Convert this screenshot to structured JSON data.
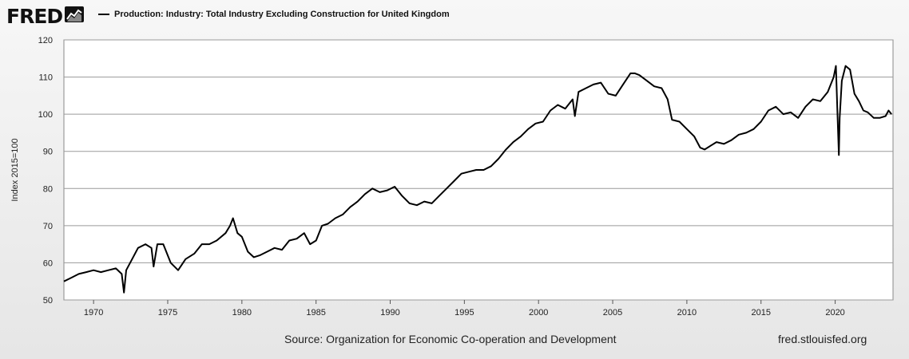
{
  "brand": {
    "name": "FRED",
    "logo_icon": "fred-chart-logo-icon"
  },
  "footer": {
    "source": "Source: Organization for Economic Co-operation and Development",
    "url": "fred.stlouisfed.org"
  },
  "chart_data": {
    "type": "line",
    "title": "",
    "xlabel": "",
    "ylabel": "Index 2015=100",
    "xlim": [
      1968,
      2023.9
    ],
    "ylim": [
      50,
      120
    ],
    "grid": true,
    "legend_position": "top-left",
    "x_ticks": [
      "1970",
      "1975",
      "1980",
      "1985",
      "1990",
      "1995",
      "2000",
      "2005",
      "2010",
      "2015",
      "2020"
    ],
    "y_ticks": [
      "50",
      "60",
      "70",
      "80",
      "90",
      "100",
      "110",
      "120"
    ],
    "series": [
      {
        "name": "Production: Industry: Total Industry Excluding Construction for United Kingdom",
        "color": "#000000",
        "x": [
          1968.0,
          1968.5,
          1969.0,
          1969.5,
          1970.0,
          1970.5,
          1971.0,
          1971.5,
          1971.9,
          1972.05,
          1972.2,
          1972.6,
          1973.0,
          1973.5,
          1973.9,
          1974.05,
          1974.3,
          1974.7,
          1975.2,
          1975.7,
          1976.2,
          1976.8,
          1977.3,
          1977.8,
          1978.3,
          1978.9,
          1979.2,
          1979.4,
          1979.7,
          1980.0,
          1980.4,
          1980.8,
          1981.2,
          1981.7,
          1982.2,
          1982.7,
          1983.2,
          1983.7,
          1984.2,
          1984.6,
          1985.0,
          1985.4,
          1985.8,
          1986.3,
          1986.8,
          1987.3,
          1987.8,
          1988.3,
          1988.8,
          1989.3,
          1989.8,
          1990.3,
          1990.8,
          1991.3,
          1991.8,
          1992.3,
          1992.8,
          1993.3,
          1993.8,
          1994.3,
          1994.8,
          1995.3,
          1995.8,
          1996.3,
          1996.8,
          1997.3,
          1997.8,
          1998.3,
          1998.8,
          1999.3,
          1999.8,
          2000.3,
          2000.8,
          2001.3,
          2001.8,
          2002.3,
          2002.45,
          2002.7,
          2003.2,
          2003.7,
          2004.2,
          2004.7,
          2005.2,
          2005.7,
          2006.2,
          2006.5,
          2006.8,
          2007.3,
          2007.8,
          2008.3,
          2008.7,
          2009.0,
          2009.5,
          2010.0,
          2010.5,
          2010.9,
          2011.2,
          2011.6,
          2012.0,
          2012.5,
          2013.0,
          2013.5,
          2014.0,
          2014.5,
          2015.0,
          2015.5,
          2016.0,
          2016.5,
          2017.0,
          2017.5,
          2018.0,
          2018.5,
          2019.0,
          2019.5,
          2019.9,
          2020.05,
          2020.15,
          2020.25,
          2020.3,
          2020.45,
          2020.7,
          2021.0,
          2021.3,
          2021.6,
          2021.9,
          2022.2,
          2022.6,
          2023.0,
          2023.4,
          2023.6,
          2023.8
        ],
        "y": [
          55,
          56,
          57,
          57.5,
          58,
          57.5,
          58,
          58.5,
          57,
          52,
          58,
          61,
          64,
          65,
          64,
          59,
          65,
          65,
          60,
          58,
          61,
          62.5,
          65,
          65,
          66,
          68,
          70,
          72,
          68,
          67,
          63,
          61.5,
          62,
          63,
          64,
          63.5,
          66,
          66.5,
          68,
          65,
          66,
          70,
          70.5,
          72,
          73,
          75,
          76.5,
          78.5,
          80,
          79,
          79.5,
          80.5,
          78,
          76,
          75.5,
          76.5,
          76,
          78,
          80,
          82,
          84,
          84.5,
          85,
          85,
          86,
          88,
          90.5,
          92.5,
          94,
          96,
          97.5,
          98,
          101,
          102.5,
          101.5,
          104,
          99.5,
          106,
          107,
          108,
          108.5,
          105.5,
          105,
          108,
          111,
          111,
          110.5,
          109,
          107.5,
          107,
          104,
          98.5,
          98,
          96,
          94,
          91,
          90.5,
          91.5,
          92.5,
          92,
          93,
          94.5,
          95,
          96,
          98,
          101,
          102,
          100,
          100.5,
          99,
          102,
          104,
          103.5,
          106,
          110,
          113,
          100.5,
          89,
          99,
          109,
          113,
          112,
          105.5,
          103.5,
          101,
          100.5,
          99,
          99,
          99.5,
          101,
          100
        ]
      }
    ]
  }
}
